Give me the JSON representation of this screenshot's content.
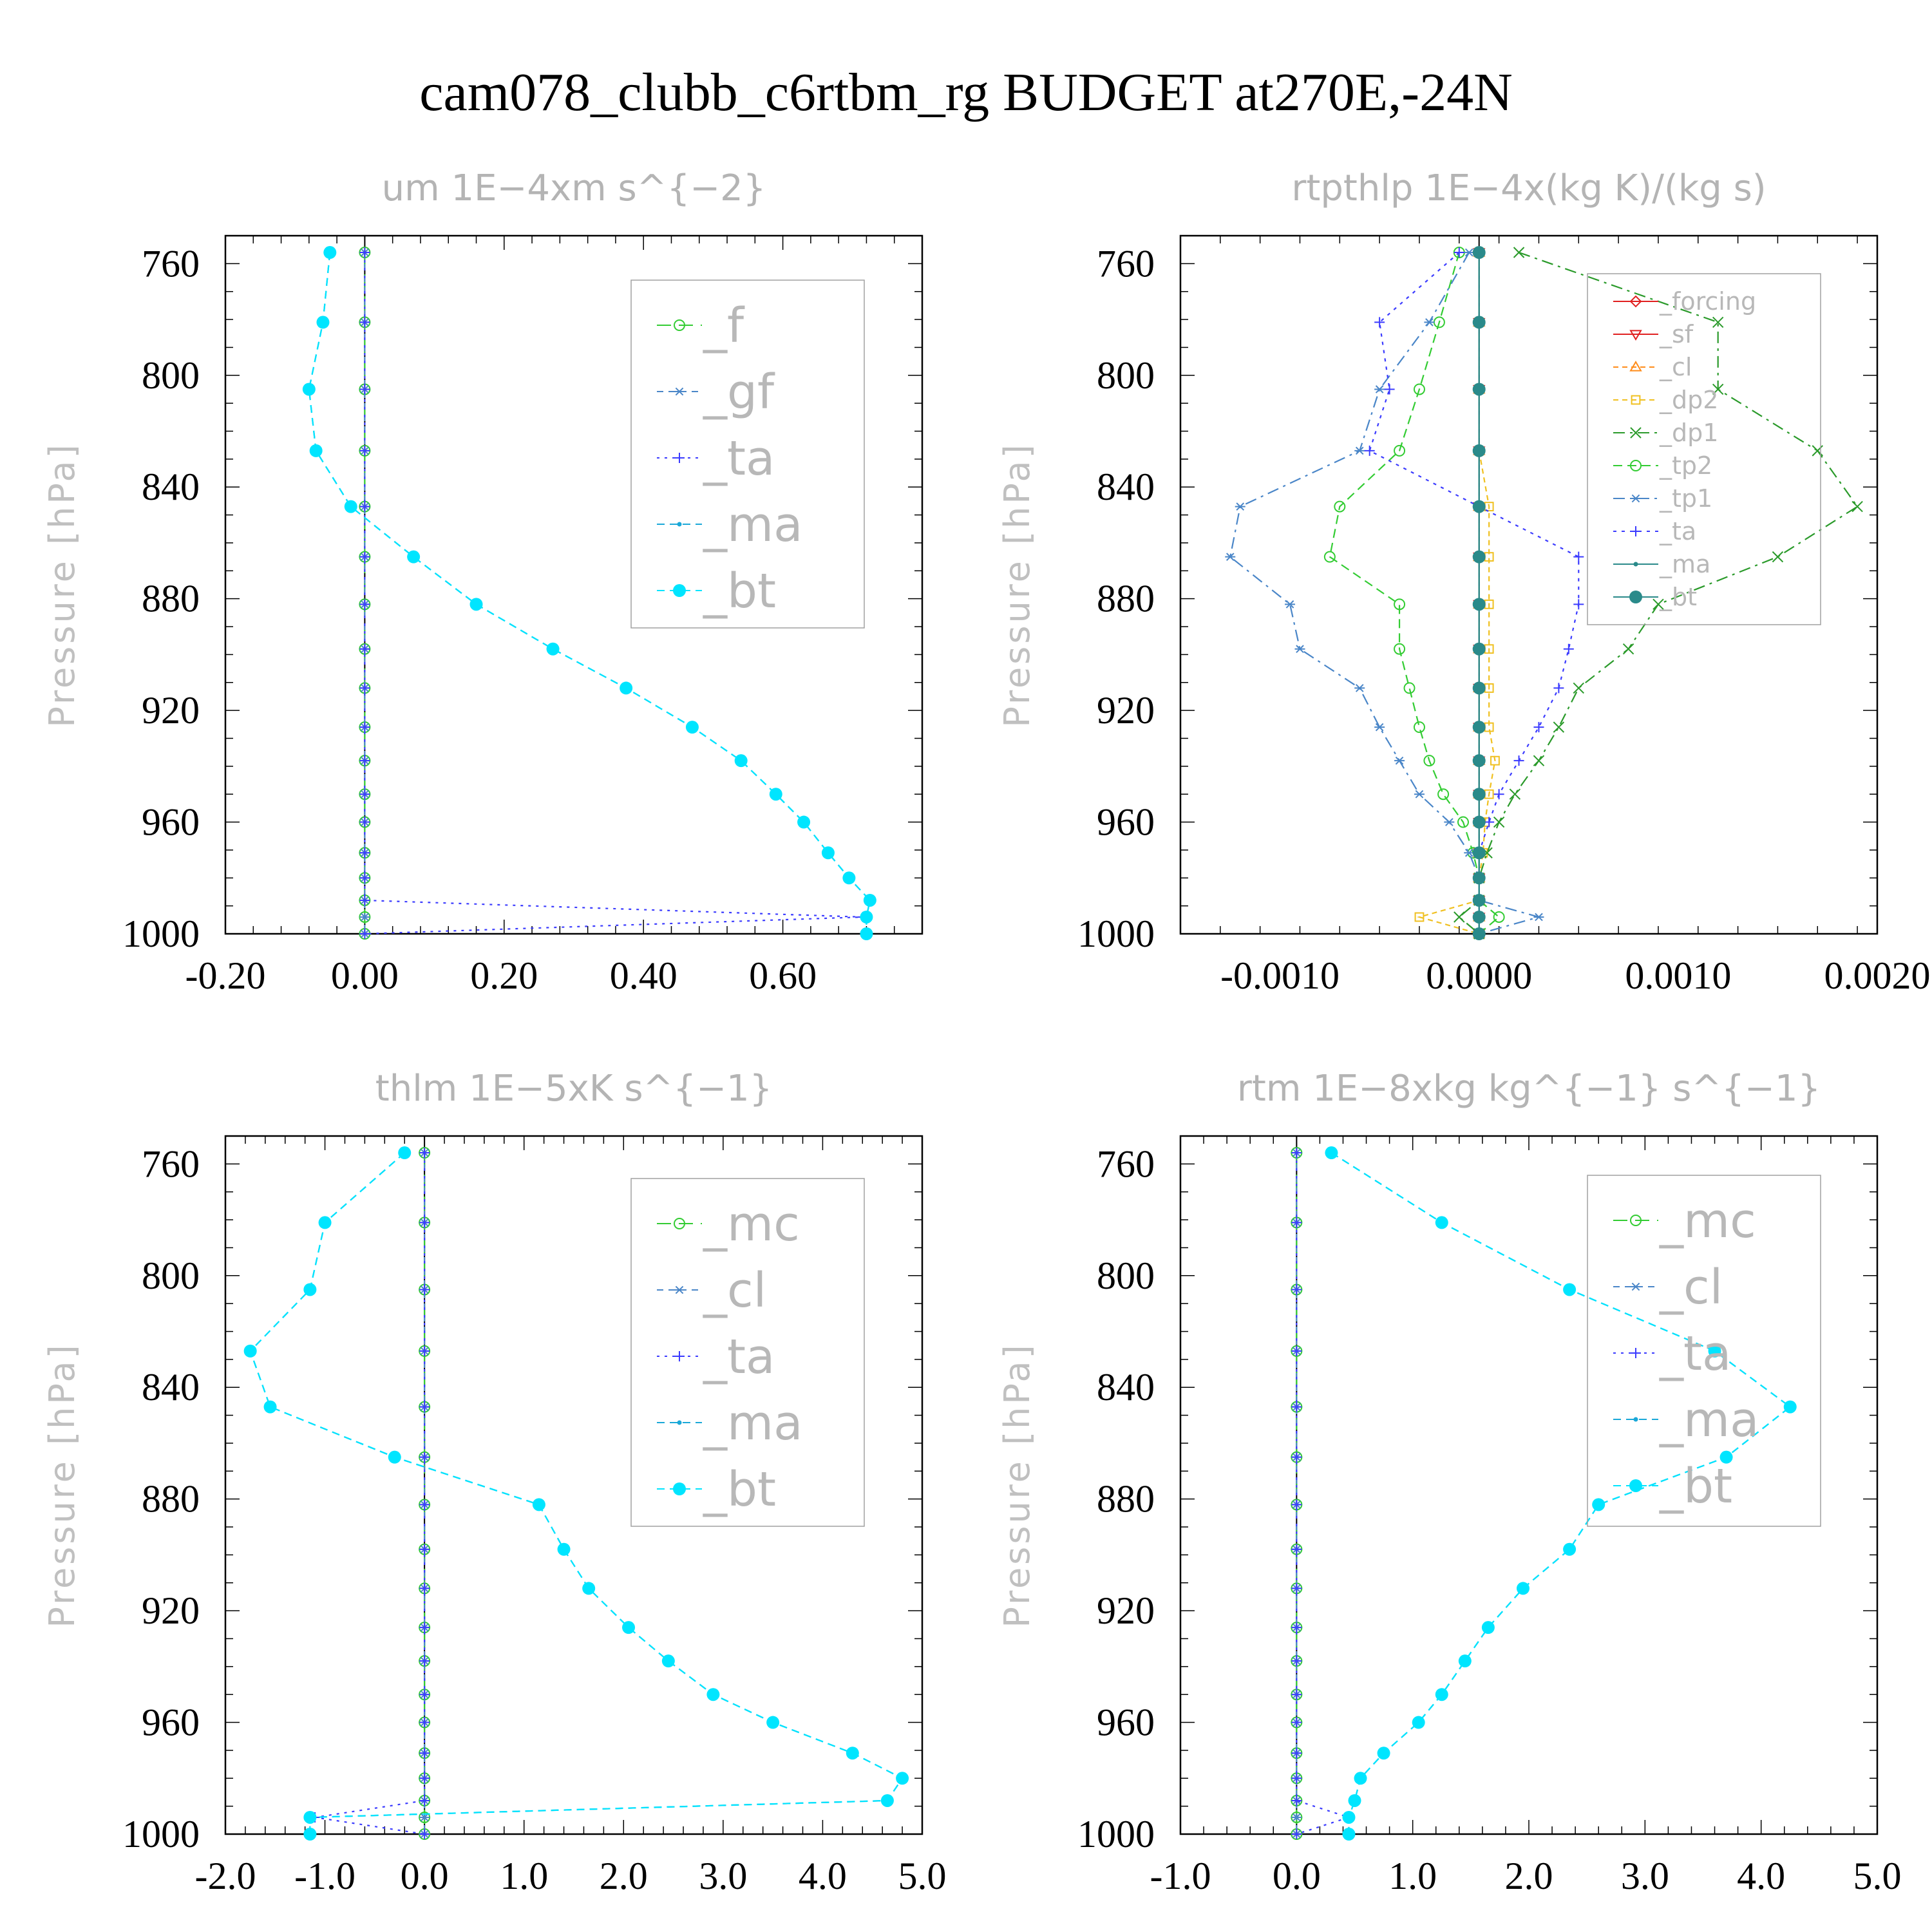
{
  "title": "cam078_clubb_c6rtbm_rg  BUDGET at270E,-24N",
  "colors": {
    "cyan": "#00e5ff",
    "cyan_line": "#1aa8d8",
    "blue": "#3b3bff",
    "green": "#33cc33",
    "dkgreen": "#2a9a2a",
    "red": "#e02020",
    "orange": "#ff8c1a",
    "yellow": "#f0c020",
    "steel": "#4a86c8",
    "teal": "#2a8a8a"
  },
  "chart_data": [
    {
      "type": "line",
      "title": "um   1E−4xm  s^{−2}",
      "ylabel": "Pressure [hPa]",
      "xlim": [
        -0.2,
        0.8
      ],
      "ylim": [
        1000,
        750
      ],
      "x_ticks": [
        "-0.20",
        "0.00",
        "0.20",
        "0.40",
        "0.60"
      ],
      "x_tick_values": [
        -0.2,
        0.0,
        0.2,
        0.4,
        0.6
      ],
      "y_ticks": [
        "760",
        "800",
        "840",
        "880",
        "920",
        "960",
        "1000"
      ],
      "y_tick_values": [
        760,
        800,
        840,
        880,
        920,
        960,
        1000
      ],
      "legend_style": "big",
      "legend_position": "upper-right",
      "legend": [
        "_f",
        "_gf",
        "_ta",
        "_ma",
        "_bt"
      ],
      "levels": [
        756,
        781,
        805,
        827,
        847,
        865,
        882,
        898,
        912,
        926,
        938,
        950,
        960,
        971,
        980,
        988,
        994,
        1000
      ],
      "series": [
        {
          "name": "_f",
          "color": "green",
          "dash": "22,12",
          "marker": "circle-open",
          "values": [
            0,
            0,
            0,
            0,
            0,
            0,
            0,
            0,
            0,
            0,
            0,
            0,
            0,
            0,
            0,
            0,
            0,
            0
          ]
        },
        {
          "name": "_gf",
          "color": "steel",
          "dash": "10,8",
          "marker": "star",
          "values": [
            0,
            0,
            0,
            0,
            0,
            0,
            0,
            0,
            0,
            0,
            0,
            0,
            0,
            0,
            0,
            0,
            0,
            0
          ]
        },
        {
          "name": "_ta",
          "color": "blue",
          "dash": "4,8",
          "marker": "plus",
          "values": [
            0,
            0,
            0,
            0,
            0,
            0,
            0,
            0,
            0,
            0,
            0,
            0,
            0,
            0,
            0,
            0,
            0.715,
            0
          ]
        },
        {
          "name": "_ma",
          "color": "cyan_line",
          "dash": "12,8",
          "marker": "dot",
          "values": [
            -0.05,
            -0.06,
            -0.08,
            -0.07,
            -0.02,
            0.07,
            0.16,
            0.27,
            0.375,
            0.47,
            0.54,
            0.59,
            0.63,
            0.665,
            0.695,
            0.725,
            0.72,
            0.72
          ]
        },
        {
          "name": "_bt",
          "color": "cyan",
          "dash": "12,8",
          "marker": "filled-circle",
          "values": [
            -0.05,
            -0.06,
            -0.08,
            -0.07,
            -0.02,
            0.07,
            0.16,
            0.27,
            0.375,
            0.47,
            0.54,
            0.59,
            0.63,
            0.665,
            0.695,
            0.725,
            0.72,
            0.72
          ]
        }
      ]
    },
    {
      "type": "line",
      "title": "rtpthlp   1E−4x(kg K)/(kg s)",
      "ylabel": "Pressure [hPa]",
      "xlim": [
        -0.0015,
        0.002
      ],
      "ylim": [
        1000,
        750
      ],
      "x_ticks": [
        "-0.0010",
        "0.0000",
        "0.0010",
        "0.0020"
      ],
      "x_tick_values": [
        -0.001,
        0.0,
        0.001,
        0.002
      ],
      "y_ticks": [
        "760",
        "800",
        "840",
        "880",
        "920",
        "960",
        "1000"
      ],
      "y_tick_values": [
        760,
        800,
        840,
        880,
        920,
        960,
        1000
      ],
      "legend_style": "small",
      "legend_position": "upper-right",
      "legend": [
        "_forcing",
        "_sf",
        "_cl",
        "_dp2",
        "_dp1",
        "_tp2",
        "_tp1",
        "_ta",
        "_ma",
        "_bt"
      ],
      "levels": [
        756,
        781,
        805,
        827,
        847,
        865,
        882,
        898,
        912,
        926,
        938,
        950,
        960,
        971,
        980,
        988,
        994,
        1000
      ],
      "series": [
        {
          "name": "_forcing",
          "color": "red",
          "dash": "",
          "marker": "diamond",
          "values": [
            0,
            0,
            0,
            0,
            0,
            0,
            0,
            0,
            0,
            0,
            0,
            0,
            0,
            0,
            0,
            0,
            0,
            0
          ]
        },
        {
          "name": "_sf",
          "color": "red",
          "dash": "",
          "marker": "triangle-down",
          "values": [
            0,
            0,
            0,
            0,
            0,
            0,
            0,
            0,
            0,
            0,
            0,
            0,
            0,
            0,
            0,
            0,
            0,
            0
          ]
        },
        {
          "name": "_cl",
          "color": "orange",
          "dash": "8,6",
          "marker": "triangle",
          "values": [
            0,
            0,
            0,
            0,
            0,
            0,
            0,
            0,
            0,
            0,
            0,
            0,
            0,
            0,
            0,
            0,
            0,
            0
          ]
        },
        {
          "name": "_dp2",
          "color": "yellow",
          "dash": "8,6",
          "marker": "square",
          "values": [
            0,
            0,
            0,
            0,
            5e-05,
            5e-05,
            5e-05,
            5e-05,
            5e-05,
            5e-05,
            8e-05,
            5e-05,
            3e-05,
            2e-05,
            0,
            0,
            -0.0003,
            0
          ]
        },
        {
          "name": "_dp1",
          "color": "dkgreen",
          "dash": "18,8,4,8",
          "marker": "x",
          "values": [
            0.0002,
            0.0012,
            0.0012,
            0.0017,
            0.0019,
            0.0015,
            0.0009,
            0.00075,
            0.0005,
            0.0004,
            0.0003,
            0.00018,
            0.0001,
            4e-05,
            0,
            0,
            -0.0001,
            0
          ]
        },
        {
          "name": "_tp2",
          "color": "green",
          "dash": "14,8",
          "marker": "circle-open",
          "values": [
            -0.0001,
            -0.0002,
            -0.0003,
            -0.0004,
            -0.0007,
            -0.00075,
            -0.0004,
            -0.0004,
            -0.00035,
            -0.0003,
            -0.00025,
            -0.00018,
            -8e-05,
            -3e-05,
            0,
            0,
            0.0001,
            0
          ]
        },
        {
          "name": "_tp1",
          "color": "steel",
          "dash": "18,8,4,8",
          "marker": "star",
          "values": [
            -5e-05,
            -0.00025,
            -0.0005,
            -0.0006,
            -0.0012,
            -0.00125,
            -0.00095,
            -0.0009,
            -0.0006,
            -0.0005,
            -0.0004,
            -0.0003,
            -0.00015,
            -5e-05,
            0,
            0,
            0.0003,
            0
          ]
        },
        {
          "name": "_ta",
          "color": "blue",
          "dash": "5,8",
          "marker": "plus",
          "values": [
            -0.0001,
            -0.0005,
            -0.00045,
            -0.00055,
            0,
            0.0005,
            0.0005,
            0.00045,
            0.0004,
            0.0003,
            0.0002,
            0.0001,
            5e-05,
            0,
            0,
            0,
            0,
            0
          ]
        },
        {
          "name": "_ma",
          "color": "teal",
          "dash": "",
          "marker": "dot",
          "values": [
            0,
            0,
            0,
            0,
            0,
            0,
            0,
            0,
            0,
            0,
            0,
            0,
            0,
            0,
            0,
            0,
            0,
            0
          ]
        },
        {
          "name": "_bt",
          "color": "teal",
          "dash": "",
          "marker": "filled-circle",
          "values": [
            0,
            0,
            0,
            0,
            0,
            0,
            0,
            0,
            0,
            0,
            0,
            0,
            0,
            0,
            0,
            0,
            0,
            0
          ]
        }
      ]
    },
    {
      "type": "line",
      "title": "thlm   1E−5xK  s^{−1}",
      "ylabel": "Pressure [hPa]",
      "xlim": [
        -2.0,
        5.0
      ],
      "ylim": [
        1000,
        750
      ],
      "x_ticks": [
        "-2.0",
        "-1.0",
        "0.0",
        "1.0",
        "2.0",
        "3.0",
        "4.0",
        "5.0"
      ],
      "x_tick_values": [
        -2.0,
        -1.0,
        0.0,
        1.0,
        2.0,
        3.0,
        4.0,
        5.0
      ],
      "y_ticks": [
        "760",
        "800",
        "840",
        "880",
        "920",
        "960",
        "1000"
      ],
      "y_tick_values": [
        760,
        800,
        840,
        880,
        920,
        960,
        1000
      ],
      "legend_style": "big",
      "legend_position": "upper-right",
      "legend": [
        "_mc",
        "_cl",
        "_ta",
        "_ma",
        "_bt"
      ],
      "levels": [
        756,
        781,
        805,
        827,
        847,
        865,
        882,
        898,
        912,
        926,
        938,
        950,
        960,
        971,
        980,
        988,
        994,
        1000
      ],
      "series": [
        {
          "name": "_mc",
          "color": "green",
          "dash": "22,12",
          "marker": "circle-open",
          "values": [
            0,
            0,
            0,
            0,
            0,
            0,
            0,
            0,
            0,
            0,
            0,
            0,
            0,
            0,
            0,
            0,
            0,
            0
          ]
        },
        {
          "name": "_cl",
          "color": "steel",
          "dash": "10,8",
          "marker": "star",
          "values": [
            0,
            0,
            0,
            0,
            0,
            0,
            0,
            0,
            0,
            0,
            0,
            0,
            0,
            0,
            0,
            0,
            0,
            0
          ]
        },
        {
          "name": "_ta",
          "color": "blue",
          "dash": "4,8",
          "marker": "plus",
          "values": [
            0,
            0,
            0,
            0,
            0,
            0,
            0,
            0,
            0,
            0,
            0,
            0,
            0,
            0,
            0,
            0,
            -1.1,
            0
          ]
        },
        {
          "name": "_ma",
          "color": "cyan_line",
          "dash": "12,8",
          "marker": "dot",
          "values": [
            -0.2,
            -1.0,
            -1.15,
            -1.75,
            -1.55,
            -0.3,
            1.15,
            1.4,
            1.65,
            2.05,
            2.45,
            2.9,
            3.5,
            4.3,
            4.8,
            4.65,
            -1.15,
            -1.15
          ]
        },
        {
          "name": "_bt",
          "color": "cyan",
          "dash": "12,8",
          "marker": "filled-circle",
          "values": [
            -0.2,
            -1.0,
            -1.15,
            -1.75,
            -1.55,
            -0.3,
            1.15,
            1.4,
            1.65,
            2.05,
            2.45,
            2.9,
            3.5,
            4.3,
            4.8,
            4.65,
            -1.15,
            -1.15
          ]
        }
      ]
    },
    {
      "type": "line",
      "title": "rtm   1E−8xkg  kg^{−1}  s^{−1}",
      "ylabel": "Pressure [hPa]",
      "xlim": [
        -1.0,
        5.0
      ],
      "ylim": [
        1000,
        750
      ],
      "x_ticks": [
        "-1.0",
        "0.0",
        "1.0",
        "2.0",
        "3.0",
        "4.0",
        "5.0"
      ],
      "x_tick_values": [
        -1.0,
        0.0,
        1.0,
        2.0,
        3.0,
        4.0,
        5.0
      ],
      "y_ticks": [
        "760",
        "800",
        "840",
        "880",
        "920",
        "960",
        "1000"
      ],
      "y_tick_values": [
        760,
        800,
        840,
        880,
        920,
        960,
        1000
      ],
      "legend_style": "big",
      "legend_position": "upper-right",
      "legend": [
        "_mc",
        "_cl",
        "_ta",
        "_ma",
        "_bt"
      ],
      "levels": [
        756,
        781,
        805,
        827,
        847,
        865,
        882,
        898,
        912,
        926,
        938,
        950,
        960,
        971,
        980,
        988,
        994,
        1000
      ],
      "series": [
        {
          "name": "_mc",
          "color": "green",
          "dash": "22,12",
          "marker": "circle-open",
          "values": [
            0,
            0,
            0,
            0,
            0,
            0,
            0,
            0,
            0,
            0,
            0,
            0,
            0,
            0,
            0,
            0,
            0,
            0
          ]
        },
        {
          "name": "_cl",
          "color": "steel",
          "dash": "10,8",
          "marker": "star",
          "values": [
            0,
            0,
            0,
            0,
            0,
            0,
            0,
            0,
            0,
            0,
            0,
            0,
            0,
            0,
            0,
            0,
            0,
            0
          ]
        },
        {
          "name": "_ta",
          "color": "blue",
          "dash": "4,8",
          "marker": "plus",
          "values": [
            0,
            0,
            0,
            0,
            0,
            0,
            0,
            0,
            0,
            0,
            0,
            0,
            0,
            0,
            0,
            0,
            0.45,
            0
          ]
        },
        {
          "name": "_ma",
          "color": "cyan_line",
          "dash": "12,8",
          "marker": "dot",
          "values": [
            0.3,
            1.25,
            2.35,
            3.6,
            4.25,
            3.7,
            2.6,
            2.35,
            1.95,
            1.65,
            1.45,
            1.25,
            1.05,
            0.75,
            0.55,
            0.5,
            0.45,
            0.45
          ]
        },
        {
          "name": "_bt",
          "color": "cyan",
          "dash": "12,8",
          "marker": "filled-circle",
          "values": [
            0.3,
            1.25,
            2.35,
            3.6,
            4.25,
            3.7,
            2.6,
            2.35,
            1.95,
            1.65,
            1.45,
            1.25,
            1.05,
            0.75,
            0.55,
            0.5,
            0.45,
            0.45
          ]
        }
      ]
    }
  ]
}
